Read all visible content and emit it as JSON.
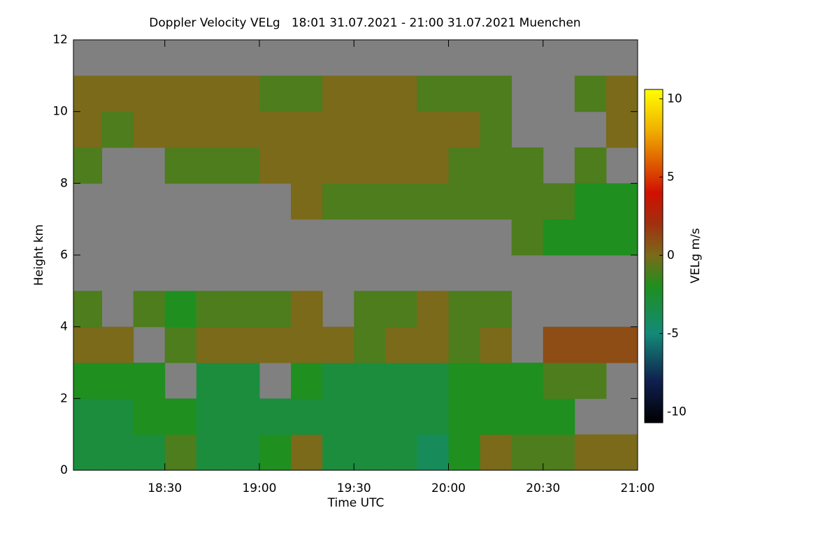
{
  "chart_data": {
    "type": "heatmap",
    "title": "Doppler Velocity VELg   18:01 31.07.2021 - 21:00 31.07.2021 Muenchen",
    "x_label": "Time UTC",
    "y_label": "Height km",
    "colorbar_label": "VELg m/s",
    "xlim": [
      1081,
      1260
    ],
    "xticks": [
      {
        "value": 1110,
        "label": "18:30"
      },
      {
        "value": 1140,
        "label": "19:00"
      },
      {
        "value": 1170,
        "label": "19:30"
      },
      {
        "value": 1200,
        "label": "20:00"
      },
      {
        "value": 1230,
        "label": "20:30"
      },
      {
        "value": 1260,
        "label": "21:00"
      }
    ],
    "ylim": [
      0,
      12
    ],
    "yticks": [
      0,
      2,
      4,
      6,
      8,
      10,
      12
    ],
    "xbins": [
      1081,
      1090,
      1100,
      1110,
      1120,
      1130,
      1140,
      1150,
      1160,
      1170,
      1180,
      1190,
      1200,
      1210,
      1220,
      1230,
      1240,
      1250,
      1260
    ],
    "ybins": [
      0,
      1,
      2,
      3,
      4,
      5,
      6,
      7,
      8,
      9,
      10,
      11,
      12
    ],
    "z": [
      [
        -3,
        -3,
        -3,
        -1,
        -3,
        -3,
        -2,
        0,
        -3,
        -3,
        -3,
        -4,
        -2,
        0,
        -1,
        -1,
        0,
        0
      ],
      [
        -3,
        -3,
        -2,
        -2,
        -3,
        -3,
        -3,
        -3,
        -3,
        -3,
        -3,
        -3,
        -2,
        -2,
        -2,
        -2,
        null,
        null
      ],
      [
        -2,
        -2,
        -2,
        null,
        -3,
        -3,
        null,
        -2,
        -3,
        -3,
        -3,
        -3,
        -2,
        -2,
        -2,
        -1,
        -1,
        null
      ],
      [
        0,
        0,
        null,
        -1,
        0,
        0,
        0,
        0,
        0,
        -1,
        0,
        0,
        -1,
        0,
        null,
        1,
        1,
        1
      ],
      [
        -1,
        null,
        -1,
        -2,
        -1,
        -1,
        -1,
        0,
        null,
        -1,
        -1,
        0,
        -1,
        -1,
        null,
        null,
        null,
        null
      ],
      [
        null,
        null,
        null,
        null,
        null,
        null,
        null,
        null,
        null,
        null,
        null,
        null,
        null,
        null,
        null,
        null,
        null,
        null
      ],
      [
        null,
        null,
        null,
        null,
        null,
        null,
        null,
        null,
        null,
        null,
        null,
        null,
        null,
        null,
        -1,
        -2,
        -2,
        -2
      ],
      [
        null,
        null,
        null,
        null,
        null,
        null,
        null,
        0,
        -1,
        -1,
        -1,
        -1,
        -1,
        -1,
        -1,
        -1,
        -2,
        -2
      ],
      [
        -1,
        null,
        null,
        -1,
        -1,
        -1,
        0,
        0,
        0,
        0,
        0,
        0,
        -1,
        -1,
        -1,
        null,
        -1,
        null
      ],
      [
        0,
        -1,
        0,
        0,
        0,
        0,
        0,
        0,
        0,
        0,
        0,
        0,
        0,
        -1,
        null,
        null,
        null,
        0
      ],
      [
        0,
        0,
        0,
        0,
        0,
        0,
        -1,
        -1,
        0,
        0,
        0,
        -1,
        -1,
        -1,
        null,
        null,
        -1,
        0
      ],
      [
        null,
        null,
        null,
        null,
        null,
        null,
        null,
        null,
        null,
        null,
        null,
        null,
        null,
        null,
        null,
        null,
        null,
        null
      ]
    ],
    "missing_color": "#808080",
    "zlim": [
      -10.7,
      10.6
    ],
    "zticks": [
      -10,
      -5,
      0,
      5,
      10
    ],
    "colorscale": [
      [
        -10.7,
        "#000000"
      ],
      [
        -8,
        "#102050"
      ],
      [
        -5,
        "#138a78"
      ],
      [
        -2,
        "#1f8f1f"
      ],
      [
        0,
        "#7a6a1a"
      ],
      [
        2,
        "#a03010"
      ],
      [
        4,
        "#d01000"
      ],
      [
        6,
        "#e06000"
      ],
      [
        8,
        "#f0b000"
      ],
      [
        10.6,
        "#ffff00"
      ]
    ]
  }
}
